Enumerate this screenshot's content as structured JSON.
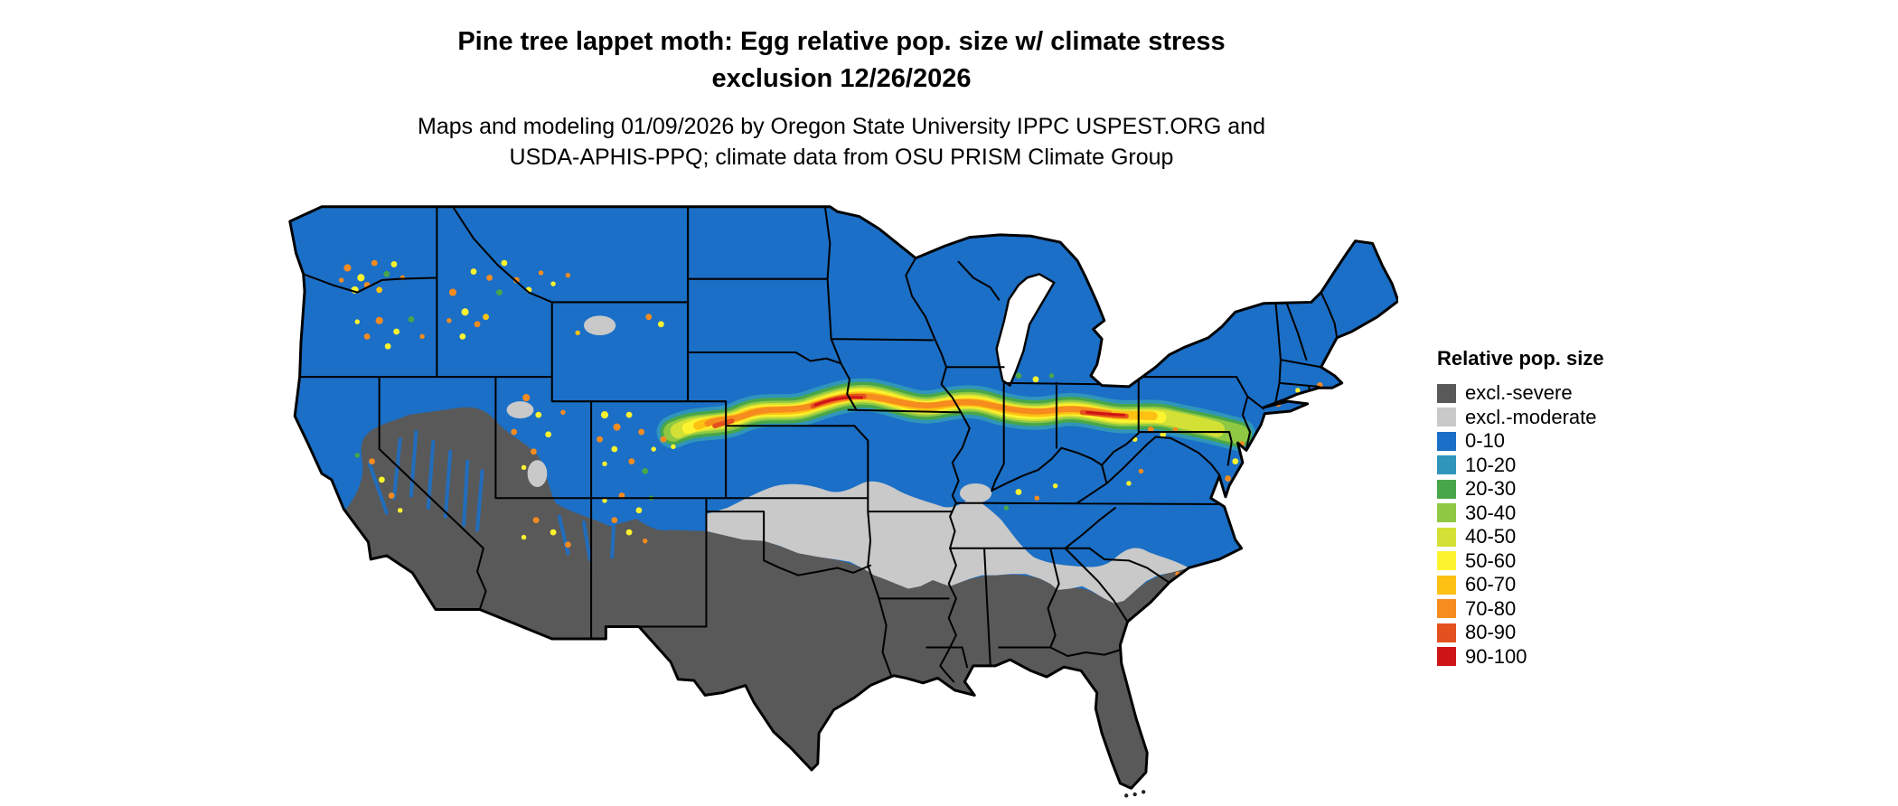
{
  "title": {
    "line1": "Pine tree lappet moth: Egg relative pop. size w/ climate stress",
    "line2": "exclusion 12/26/2026"
  },
  "subtitle": {
    "line1": "Maps and modeling 01/09/2026 by Oregon State University IPPC USPEST.ORG and",
    "line2": "USDA-APHIS-PPQ; climate data from OSU PRISM Climate Group"
  },
  "legend": {
    "title": "Relative pop. size",
    "entries": [
      {
        "label": "excl.-severe",
        "color": "#595959"
      },
      {
        "label": "excl.-moderate",
        "color": "#c9c9c9"
      },
      {
        "label": "0-10",
        "color": "#1b6fc6"
      },
      {
        "label": "10-20",
        "color": "#3095bb"
      },
      {
        "label": "20-30",
        "color": "#48a64a"
      },
      {
        "label": "30-40",
        "color": "#8fc843"
      },
      {
        "label": "40-50",
        "color": "#d3e036"
      },
      {
        "label": "50-60",
        "color": "#fef32f"
      },
      {
        "label": "60-70",
        "color": "#fdc113"
      },
      {
        "label": "70-80",
        "color": "#f68b1f"
      },
      {
        "label": "80-90",
        "color": "#e4511e"
      },
      {
        "label": "90-100",
        "color": "#cf1417"
      }
    ]
  }
}
